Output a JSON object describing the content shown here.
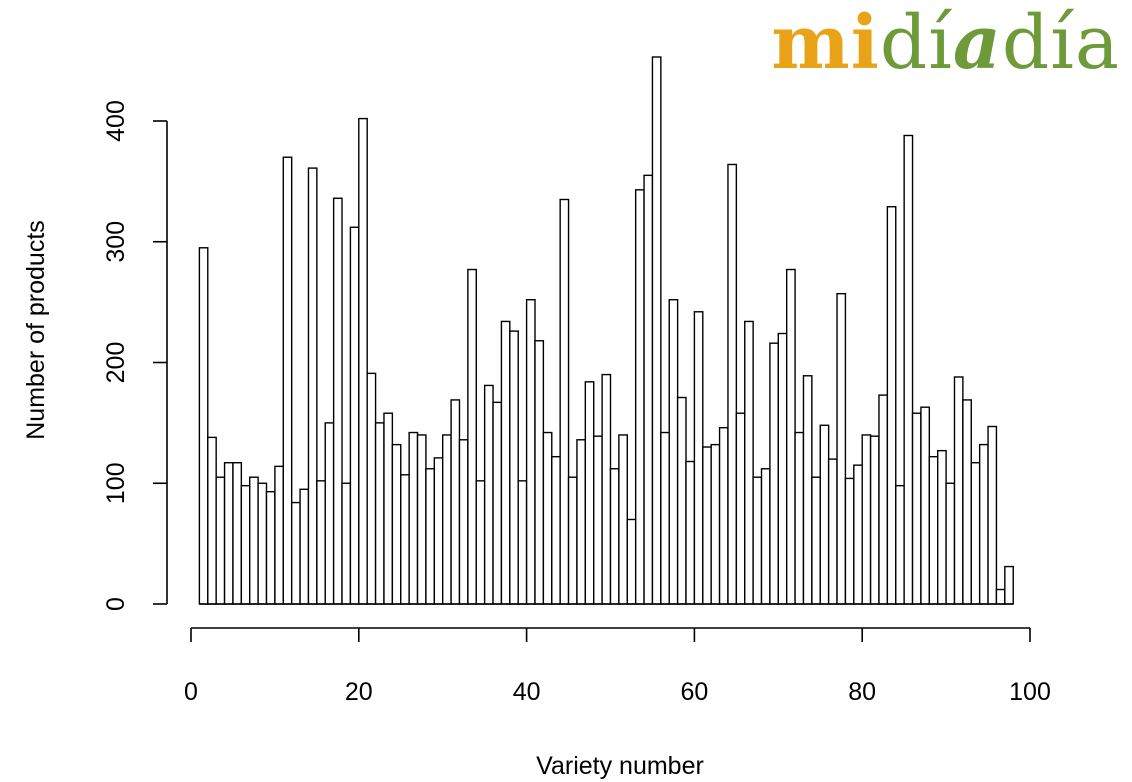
{
  "logo": {
    "part1": "mi",
    "part2": "dí",
    "part3": "a",
    "part4": "día",
    "colors": {
      "mi": "#e9a319",
      "dia": "#6e9a39"
    }
  },
  "chart_data": {
    "type": "bar",
    "title": "",
    "xlabel": "Variety number",
    "ylabel": "Number of products",
    "xlim": [
      0,
      100
    ],
    "ylim": [
      0,
      450
    ],
    "x_ticks": [
      0,
      20,
      40,
      60,
      80,
      100
    ],
    "y_ticks": [
      0,
      100,
      200,
      300,
      400
    ],
    "grid": false,
    "x": [
      1,
      2,
      3,
      4,
      5,
      6,
      7,
      8,
      9,
      10,
      11,
      12,
      13,
      14,
      15,
      16,
      17,
      18,
      19,
      20,
      21,
      22,
      23,
      24,
      25,
      26,
      27,
      28,
      29,
      30,
      31,
      32,
      33,
      34,
      35,
      36,
      37,
      38,
      39,
      40,
      41,
      42,
      43,
      44,
      45,
      46,
      47,
      48,
      49,
      50,
      51,
      52,
      53,
      54,
      55,
      56,
      57,
      58,
      59,
      60,
      61,
      62,
      63,
      64,
      65,
      66,
      67,
      68,
      69,
      70,
      71,
      72,
      73,
      74,
      75,
      76,
      77,
      78,
      79,
      80,
      81,
      82,
      83,
      84,
      85,
      86,
      87,
      88,
      89,
      90,
      91,
      92,
      93,
      94,
      95,
      96,
      97,
      98
    ],
    "values": [
      295,
      138,
      105,
      117,
      117,
      98,
      105,
      100,
      93,
      114,
      370,
      84,
      95,
      361,
      102,
      150,
      336,
      100,
      312,
      402,
      191,
      150,
      158,
      132,
      107,
      142,
      140,
      112,
      121,
      140,
      169,
      136,
      277,
      102,
      181,
      167,
      234,
      226,
      102,
      252,
      218,
      142,
      122,
      335,
      105,
      136,
      184,
      139,
      190,
      112,
      140,
      70,
      343,
      355,
      453,
      142,
      252,
      171,
      118,
      242,
      130,
      132,
      146,
      364,
      158,
      234,
      105,
      112,
      216,
      224,
      277,
      142,
      189,
      105,
      148,
      120,
      257,
      104,
      115,
      140,
      139,
      173,
      329,
      98,
      388,
      158,
      163,
      122,
      127,
      100,
      188,
      169,
      117,
      132,
      147,
      12,
      31,
      0
    ]
  }
}
